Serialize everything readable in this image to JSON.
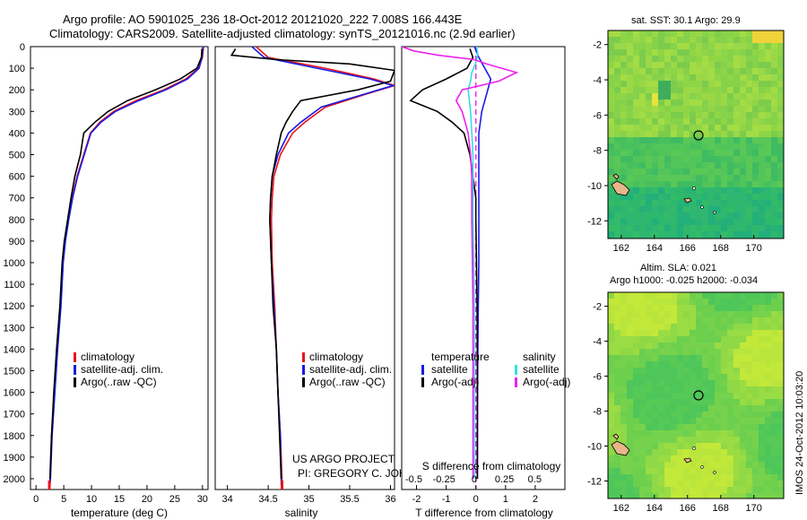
{
  "header": {
    "line1": "Argo profile: AO 5901025_236 18-Oct-2012 20121020_222 7.008S 166.443E",
    "line2": "Climatology: CARS2009. Satellite-adjusted climatology: synTS_20121016.nc (2.9d earlier)"
  },
  "depth_ticks": [
    "0",
    "100",
    "200",
    "300",
    "400",
    "500",
    "600",
    "700",
    "800",
    "900",
    "1000",
    "1100",
    "1200",
    "1300",
    "1400",
    "1500",
    "1600",
    "1700",
    "1800",
    "1900",
    "2000"
  ],
  "colors": {
    "climatology": "#e8141b",
    "satellite": "#1a1ae6",
    "argo": "#000000",
    "sat_salinity": "#33e0e0",
    "argo_salinity": "#ee22ee"
  },
  "panel1": {
    "xlabel": "temperature (deg C)",
    "xticks": [
      "0",
      "5",
      "10",
      "15",
      "20",
      "25",
      "30"
    ],
    "legend": [
      "climatology",
      "satellite-adj. clim.",
      "Argo(..raw -QC)"
    ]
  },
  "panel2": {
    "xlabel": "salinity",
    "xticks": [
      "34",
      "34.5",
      "35",
      "35.5",
      "36"
    ],
    "legend": [
      "climatology",
      "satellite-adj. clim.",
      "Argo(..raw -QC)"
    ],
    "credit1": "US ARGO PROJECT",
    "credit2": "PI: GREGORY C. JOHNSON"
  },
  "panel3": {
    "top_label": "S difference from climatology",
    "top_ticks": [
      "-0.5",
      "-0.25",
      "0",
      "0.25",
      "0.5"
    ],
    "xlabel": "T difference from climatology",
    "xticks": [
      "-2",
      "-1",
      "0",
      "1",
      "2"
    ],
    "legend_t_title": "temperature",
    "legend_s_title": "salinity",
    "legend_t": [
      "satellite",
      "Argo(-adj)"
    ],
    "legend_s": [
      "satellite",
      "Argo(-adj)"
    ]
  },
  "map1": {
    "title": "sat. SST: 30.1  Argo: 29.9",
    "yticks": [
      "-2",
      "-4",
      "-6",
      "-8",
      "-10",
      "-12"
    ],
    "xticks": [
      "162",
      "164",
      "166",
      "168",
      "170"
    ]
  },
  "map2": {
    "title1": "Altim. SLA: 0.021",
    "title2": "Argo h1000: -0.025 h2000: -0.034",
    "yticks": [
      "-2",
      "-4",
      "-6",
      "-8",
      "-10",
      "-12"
    ],
    "xticks": [
      "162",
      "164",
      "166",
      "168",
      "170"
    ]
  },
  "stamp": "IMOS 24-Oct-2012 10:03:20",
  "chart_data": [
    {
      "type": "line",
      "title": "",
      "xlabel": "temperature (deg C)",
      "ylabel": "",
      "xlim": [
        -1,
        31
      ],
      "ylim": [
        2050,
        0
      ],
      "series": [
        {
          "name": "climatology",
          "points": [
            [
              30.2,
              0
            ],
            [
              30.0,
              50
            ],
            [
              29.3,
              100
            ],
            [
              27,
              150
            ],
            [
              23,
              200
            ],
            [
              18,
              250
            ],
            [
              14,
              300
            ],
            [
              11.5,
              350
            ],
            [
              9.8,
              400
            ],
            [
              8.6,
              500
            ],
            [
              7.4,
              600
            ],
            [
              6.5,
              700
            ],
            [
              5.8,
              800
            ],
            [
              5.2,
              900
            ],
            [
              4.8,
              1000
            ],
            [
              4.4,
              1200
            ],
            [
              3.8,
              1400
            ],
            [
              3.3,
              1600
            ],
            [
              2.8,
              1800
            ],
            [
              2.5,
              2000
            ],
            [
              2.4,
              2040
            ]
          ]
        },
        {
          "name": "satellite-adj. clim.",
          "points": [
            [
              30.1,
              0
            ],
            [
              29.9,
              50
            ],
            [
              29.4,
              100
            ],
            [
              27.3,
              150
            ],
            [
              23.4,
              200
            ],
            [
              18.5,
              250
            ],
            [
              14.3,
              300
            ],
            [
              11.7,
              350
            ],
            [
              9.9,
              400
            ],
            [
              8.7,
              500
            ],
            [
              7.5,
              600
            ],
            [
              6.6,
              700
            ],
            [
              5.9,
              800
            ],
            [
              5.3,
              900
            ],
            [
              4.9,
              1000
            ],
            [
              4.5,
              1200
            ],
            [
              3.9,
              1400
            ],
            [
              3.4,
              1600
            ],
            [
              2.9,
              1800
            ],
            [
              2.6,
              2000
            ],
            [
              2.5,
              2030
            ]
          ]
        },
        {
          "name": "Argo(..raw -QC)",
          "points": [
            [
              29.9,
              10
            ],
            [
              29.8,
              50
            ],
            [
              29.0,
              100
            ],
            [
              26,
              150
            ],
            [
              21.5,
              200
            ],
            [
              16.5,
              250
            ],
            [
              13,
              300
            ],
            [
              10.6,
              350
            ],
            [
              8.6,
              400
            ],
            [
              8.0,
              500
            ],
            [
              7.0,
              600
            ],
            [
              6.3,
              700
            ],
            [
              5.7,
              800
            ],
            [
              5.1,
              900
            ],
            [
              4.7,
              1000
            ],
            [
              4.3,
              1200
            ],
            [
              3.7,
              1400
            ],
            [
              3.2,
              1600
            ],
            [
              2.8,
              1800
            ],
            [
              2.5,
              2000
            ]
          ]
        }
      ]
    },
    {
      "type": "line",
      "title": "",
      "xlabel": "salinity",
      "ylabel": "",
      "xlim": [
        33.85,
        36.05
      ],
      "ylim": [
        2050,
        0
      ],
      "series": [
        {
          "name": "climatology",
          "points": [
            [
              34.35,
              0
            ],
            [
              34.5,
              50
            ],
            [
              35.2,
              100
            ],
            [
              35.8,
              150
            ],
            [
              36.05,
              180
            ],
            [
              35.7,
              220
            ],
            [
              35.2,
              280
            ],
            [
              34.95,
              350
            ],
            [
              34.8,
              400
            ],
            [
              34.65,
              500
            ],
            [
              34.57,
              600
            ],
            [
              34.55,
              700
            ],
            [
              34.54,
              800
            ],
            [
              34.55,
              1000
            ],
            [
              34.58,
              1200
            ],
            [
              34.6,
              1400
            ],
            [
              34.62,
              1600
            ],
            [
              34.65,
              1800
            ],
            [
              34.67,
              2000
            ],
            [
              34.67,
              2040
            ]
          ]
        },
        {
          "name": "satellite-adj. clim.",
          "points": [
            [
              34.3,
              0
            ],
            [
              34.45,
              50
            ],
            [
              35.1,
              100
            ],
            [
              35.75,
              150
            ],
            [
              36.03,
              180
            ],
            [
              35.68,
              220
            ],
            [
              35.15,
              280
            ],
            [
              34.9,
              350
            ],
            [
              34.75,
              400
            ],
            [
              34.62,
              500
            ],
            [
              34.55,
              600
            ],
            [
              34.53,
              700
            ],
            [
              34.52,
              800
            ],
            [
              34.54,
              1000
            ],
            [
              34.57,
              1200
            ],
            [
              34.6,
              1400
            ],
            [
              34.62,
              1600
            ],
            [
              34.65,
              1800
            ],
            [
              34.66,
              2000
            ],
            [
              34.66,
              2030
            ]
          ]
        },
        {
          "name": "Argo(..raw -QC)",
          "points": [
            [
              34.1,
              10
            ],
            [
              34.05,
              40
            ],
            [
              34.6,
              60
            ],
            [
              35.5,
              80
            ],
            [
              36.05,
              110
            ],
            [
              36.0,
              160
            ],
            [
              35.6,
              200
            ],
            [
              34.9,
              250
            ],
            [
              34.8,
              300
            ],
            [
              34.72,
              350
            ],
            [
              34.66,
              400
            ],
            [
              34.6,
              500
            ],
            [
              34.55,
              600
            ],
            [
              34.53,
              700
            ],
            [
              34.52,
              800
            ],
            [
              34.54,
              1000
            ],
            [
              34.56,
              1200
            ],
            [
              34.6,
              1400
            ],
            [
              34.62,
              1600
            ],
            [
              34.64,
              1800
            ],
            [
              34.66,
              2000
            ]
          ]
        }
      ]
    },
    {
      "type": "line",
      "title": "",
      "xlabel": "T difference from climatology",
      "ylabel": "",
      "xlim": [
        -2.5,
        3.0
      ],
      "ylim": [
        2050,
        0
      ],
      "series": [
        {
          "name": "satellite",
          "points": [
            [
              -0.05,
              0
            ],
            [
              0.1,
              50
            ],
            [
              0.3,
              100
            ],
            [
              0.5,
              150
            ],
            [
              0.4,
              200
            ],
            [
              0.3,
              250
            ],
            [
              0.2,
              300
            ],
            [
              0.1,
              400
            ],
            [
              0.1,
              500
            ],
            [
              0.1,
              600
            ],
            [
              0.1,
              800
            ],
            [
              0.1,
              1000
            ],
            [
              0.08,
              1200
            ],
            [
              0.06,
              1500
            ],
            [
              0.05,
              1800
            ],
            [
              0.05,
              2000
            ]
          ]
        },
        {
          "name": "Argo(-adj)",
          "points": [
            [
              -0.2,
              10
            ],
            [
              -0.1,
              50
            ],
            [
              -0.3,
              100
            ],
            [
              -1.0,
              150
            ],
            [
              -1.8,
              200
            ],
            [
              -2.2,
              250
            ],
            [
              -1.3,
              300
            ],
            [
              -0.8,
              350
            ],
            [
              -0.4,
              400
            ],
            [
              -0.2,
              500
            ],
            [
              -0.1,
              600
            ],
            [
              0,
              700
            ],
            [
              0,
              800
            ],
            [
              0.02,
              1000
            ],
            [
              0.04,
              1200
            ],
            [
              0.05,
              1500
            ],
            [
              0.05,
              1800
            ],
            [
              0.05,
              2000
            ]
          ]
        }
      ]
    },
    {
      "type": "line",
      "title": "",
      "xlabel": "S difference from climatology",
      "ylabel": "",
      "xlim": [
        -0.6,
        0.75
      ],
      "ylim": [
        2050,
        0
      ],
      "series": [
        {
          "name": "satellite",
          "points": [
            [
              0.02,
              0
            ],
            [
              0.03,
              40
            ],
            [
              0.01,
              80
            ],
            [
              -0.02,
              120
            ],
            [
              -0.03,
              160
            ],
            [
              -0.05,
              200
            ],
            [
              -0.03,
              300
            ],
            [
              -0.02,
              400
            ],
            [
              -0.01,
              500
            ],
            [
              -0.01,
              800
            ],
            [
              0,
              1200
            ],
            [
              0,
              1600
            ],
            [
              0,
              2000
            ]
          ]
        },
        {
          "name": "Argo(-adj)",
          "points": [
            [
              -0.6,
              0
            ],
            [
              -0.5,
              20
            ],
            [
              -0.3,
              40
            ],
            [
              0.0,
              60
            ],
            [
              0.1,
              80
            ],
            [
              0.35,
              120
            ],
            [
              0.2,
              160
            ],
            [
              -0.1,
              200
            ],
            [
              -0.15,
              250
            ],
            [
              -0.1,
              300
            ],
            [
              -0.05,
              400
            ],
            [
              -0.03,
              500
            ],
            [
              -0.02,
              600
            ],
            [
              -0.02,
              800
            ],
            [
              -0.01,
              1200
            ],
            [
              -0.01,
              1600
            ],
            [
              -0.01,
              2000
            ]
          ]
        }
      ]
    },
    {
      "type": "heatmap",
      "title": "sat. SST: 30.1  Argo: 29.9",
      "xlabel": "",
      "ylabel": "",
      "xlim": [
        161.2,
        171.8
      ],
      "ylim": [
        -13.0,
        -1.2
      ],
      "float_position": [
        166.443,
        -7.008
      ]
    },
    {
      "type": "heatmap",
      "title": "Altim. SLA: 0.021",
      "xlabel": "",
      "ylabel": "",
      "xlim": [
        161.2,
        171.8
      ],
      "ylim": [
        -13.0,
        -1.2
      ],
      "float_position": [
        166.443,
        -7.008
      ]
    }
  ]
}
